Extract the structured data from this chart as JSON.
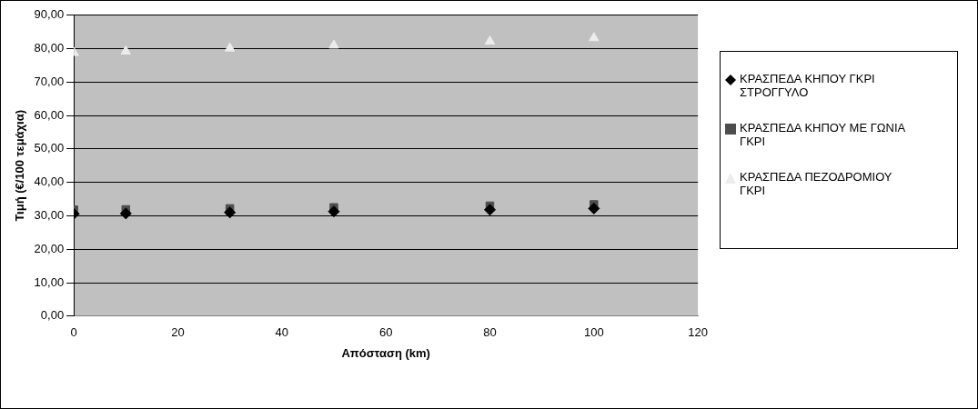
{
  "chart_data": {
    "type": "scatter",
    "xlabel": "Απόσταση (km)",
    "ylabel": "Τιμή (€/100 τεμάχια)",
    "x": [
      0,
      10,
      30,
      50,
      80,
      100
    ],
    "series": [
      {
        "name": "ΚΡΑΣΠΕΔΑ ΚΗΠΟΥ ΓΚΡΙ ΣΤΡΟΓΓΥΛΟ",
        "color": "#000000",
        "marker": "diamond",
        "values": [
          30.6,
          30.7,
          31.0,
          31.3,
          31.8,
          32.2
        ]
      },
      {
        "name": "ΚΡΑΣΠΕΔΑ ΚΗΠΟΥ ΜΕ ΓΩΝΙΑ ΓΚΡΙ",
        "color": "#4d4d4d",
        "marker": "square",
        "values": [
          31.8,
          31.9,
          32.2,
          32.5,
          33.0,
          33.4
        ]
      },
      {
        "name": "ΚΡΑΣΠΕΔΑ ΠΕΖΟΔΡΟΜΙΟΥ ΓΚΡΙ",
        "color": "#ececec",
        "marker": "triangle",
        "values": [
          78.8,
          79.2,
          80.1,
          81.0,
          82.2,
          83.2
        ]
      }
    ],
    "xlim": [
      0,
      120
    ],
    "xticks": [
      0,
      20,
      40,
      60,
      80,
      100,
      120
    ],
    "ylim": [
      0,
      90
    ],
    "yticks": [
      {
        "value": 0,
        "label": "0,00"
      },
      {
        "value": 10,
        "label": "10,00"
      },
      {
        "value": 20,
        "label": "20,00"
      },
      {
        "value": 30,
        "label": "30,00"
      },
      {
        "value": 40,
        "label": "40,00"
      },
      {
        "value": 50,
        "label": "50,00"
      },
      {
        "value": 60,
        "label": "60,00"
      },
      {
        "value": 70,
        "label": "70,00"
      },
      {
        "value": 80,
        "label": "80,00"
      },
      {
        "value": 90,
        "label": "90,00"
      }
    ],
    "grid": "y",
    "legend": "right"
  }
}
